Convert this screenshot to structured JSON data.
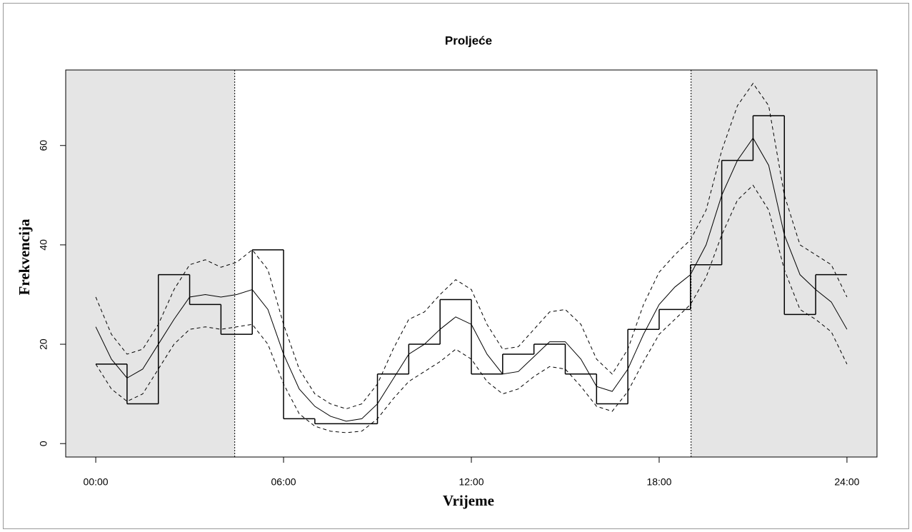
{
  "chart_data": {
    "type": "line",
    "title": "Proljeće",
    "xlabel": "Vrijeme",
    "ylabel": "Frekvencija",
    "xlim": [
      -0.96,
      24.96
    ],
    "ylim": [
      -2.7,
      75.2
    ],
    "xticks": [
      {
        "value": 0,
        "label": "00:00"
      },
      {
        "value": 6,
        "label": "06:00"
      },
      {
        "value": 12,
        "label": "12:00"
      },
      {
        "value": 18,
        "label": "18:00"
      },
      {
        "value": 24,
        "label": "24:00"
      }
    ],
    "yticks": [
      0,
      20,
      40,
      60
    ],
    "vlines": [
      4.44,
      19.02
    ],
    "shade_color": "#e5e5e5",
    "histogram": {
      "color": "#000000",
      "bins": [
        0,
        1,
        2,
        3,
        4,
        5,
        6,
        7,
        8,
        9,
        10,
        11,
        12,
        13,
        14,
        15,
        16,
        17,
        18,
        19,
        20,
        21,
        22,
        23,
        24
      ],
      "counts": [
        16,
        8,
        34,
        28,
        22,
        39,
        5,
        4,
        4,
        14,
        20,
        29,
        14,
        18,
        20,
        14,
        8,
        23,
        27,
        36,
        57,
        66,
        26,
        34
      ]
    },
    "x": [
      0,
      0.5,
      1,
      1.5,
      2,
      2.5,
      3,
      3.5,
      4,
      4.5,
      5,
      5.5,
      6,
      6.5,
      7,
      7.5,
      8,
      8.5,
      9,
      9.5,
      10,
      10.5,
      11,
      11.5,
      12,
      12.5,
      13,
      13.5,
      14,
      14.5,
      15,
      15.5,
      16,
      16.5,
      17,
      17.5,
      18,
      18.5,
      19,
      19.5,
      20,
      20.5,
      21,
      21.5,
      22,
      22.5,
      23,
      23.5,
      24
    ],
    "series": [
      {
        "color": "#000000",
        "dashed": false,
        "values": [
          23.5,
          17,
          13.2,
          15,
          20,
          25,
          29.5,
          30,
          29.5,
          30,
          31,
          27,
          18,
          11,
          7.5,
          5.5,
          4.5,
          5,
          8,
          13,
          18,
          20,
          23,
          25.5,
          24,
          18,
          14,
          14.5,
          17.5,
          20.5,
          20.5,
          17,
          11.5,
          10.5,
          15,
          22,
          28,
          31.5,
          34,
          40,
          50,
          57,
          61.5,
          56,
          42,
          34,
          31,
          28.5,
          23
        ]
      },
      {
        "color": "#000000",
        "dashed": true,
        "values": [
          29.5,
          22,
          18,
          19,
          24,
          31,
          36,
          37,
          35.5,
          36.5,
          39,
          35,
          24,
          15,
          10,
          8,
          7,
          8,
          12,
          19,
          25,
          26.5,
          30,
          33,
          31,
          24,
          19,
          19.5,
          23,
          26.5,
          27,
          24,
          17,
          14,
          19,
          28,
          34.5,
          38,
          41,
          47,
          59,
          68,
          72.5,
          68,
          50,
          40,
          38,
          36,
          29.5
        ]
      },
      {
        "color": "#000000",
        "dashed": true,
        "values": [
          16,
          11,
          8.5,
          10,
          15,
          20,
          23,
          23.5,
          23,
          23.5,
          24,
          20,
          12,
          6,
          3.5,
          2.5,
          2.2,
          2.5,
          5,
          9,
          12.5,
          14.5,
          16.5,
          19,
          17,
          12.5,
          10,
          11,
          13.5,
          15.5,
          15,
          11.5,
          7.5,
          6.5,
          10.5,
          16.5,
          22,
          25,
          28,
          33.5,
          42,
          49,
          52,
          47,
          35,
          27,
          25,
          22.5,
          16
        ]
      }
    ]
  }
}
